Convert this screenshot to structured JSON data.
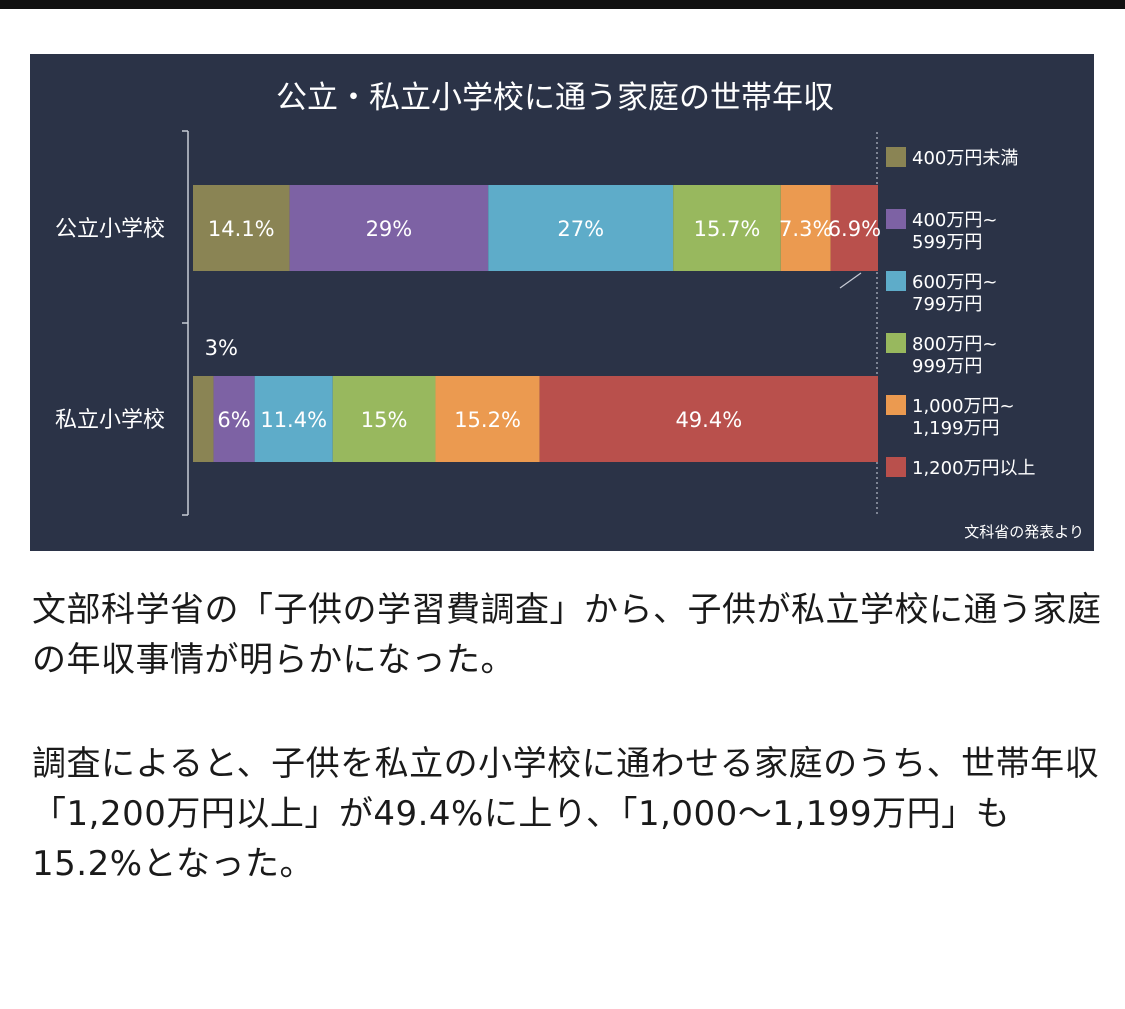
{
  "chart_data": {
    "type": "bar",
    "stacked": true,
    "orientation": "horizontal",
    "title": "公立・私立小学校に通う家庭の世帯年収",
    "categories": [
      "公立小学校",
      "私立小学校"
    ],
    "series": [
      {
        "name": "400万円未満",
        "name_lines": [
          "400万円未満"
        ],
        "color": "#8a8454",
        "values": [
          14.1,
          3
        ],
        "labels": [
          "14.1%",
          "3%"
        ]
      },
      {
        "name": "400万円~599万円",
        "name_lines": [
          "400万円~",
          "599万円"
        ],
        "color": "#7d62a4",
        "values": [
          29,
          6
        ],
        "labels": [
          "29%",
          "6%"
        ]
      },
      {
        "name": "600万円~799万円",
        "name_lines": [
          "600万円~",
          "799万円"
        ],
        "color": "#5eacc9",
        "values": [
          27,
          11.4
        ],
        "labels": [
          "27%",
          "11.4%"
        ]
      },
      {
        "name": "800万円~999万円",
        "name_lines": [
          "800万円~",
          "999万円"
        ],
        "color": "#98b85e",
        "values": [
          15.7,
          15
        ],
        "labels": [
          "15.7%",
          "15%"
        ]
      },
      {
        "name": "1,000万円~1,199万円",
        "name_lines": [
          "1,000万円~",
          "1,199万円"
        ],
        "color": "#eb9a50",
        "values": [
          7.3,
          15.2
        ],
        "labels": [
          "7.3%",
          "15.2%"
        ]
      },
      {
        "name": "1,200万円以上",
        "name_lines": [
          "1,200万円以上"
        ],
        "color": "#b9504c",
        "values": [
          6.9,
          49.4
        ],
        "labels": [
          "6.9%",
          "49.4%"
        ]
      }
    ],
    "legend": "right",
    "source_note": "文科省の発表より",
    "background": "#2b3347"
  },
  "article": {
    "paragraph1": "文部科学省の「子供の学習費調査」から、子供が私立学校に通う家庭の年収事情が明らかになった。",
    "paragraph2": "調査によると、子供を私立の小学校に通わせる家庭のうち、世帯年収「1,200万円以上」が49.4%に上り、「1,000～1,199万円」も15.2%となった。"
  }
}
